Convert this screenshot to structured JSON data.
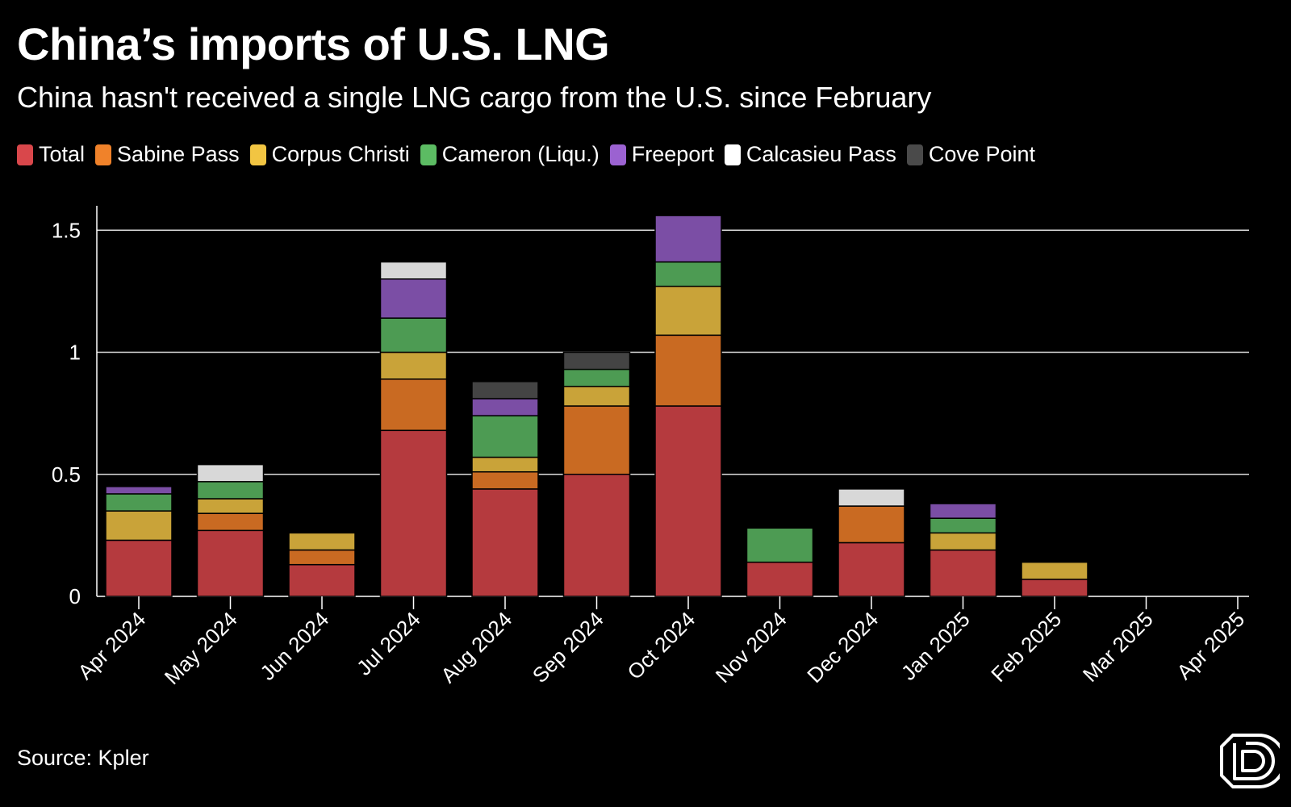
{
  "title": "China’s imports of U.S. LNG",
  "subtitle": "China hasn't received a single LNG cargo from the U.S. since February",
  "source": "Source: Kpler",
  "logo": "D",
  "legend": [
    {
      "label": "Total",
      "color": "#d9474b"
    },
    {
      "label": "Sabine Pass",
      "color": "#f0822a"
    },
    {
      "label": "Corpus Christi",
      "color": "#f2c542"
    },
    {
      "label": "Cameron (Liqu.)",
      "color": "#5cbc63"
    },
    {
      "label": "Freeport",
      "color": "#9b62d1"
    },
    {
      "label": "Calcasieu Pass",
      "color": "#ffffff"
    },
    {
      "label": "Cove Point",
      "color": "#4a4a4a"
    }
  ],
  "chart_data": {
    "type": "bar",
    "stacked": true,
    "categories": [
      "Apr 2024",
      "May 2024",
      "Jun 2024",
      "Jul 2024",
      "Aug 2024",
      "Sep 2024",
      "Oct 2024",
      "Nov 2024",
      "Dec 2024",
      "Jan 2025",
      "Feb 2025",
      "Mar 2025",
      "Apr 2025"
    ],
    "series": [
      {
        "name": "Total",
        "color": "#b53a3e",
        "values": [
          0.23,
          0.27,
          0.13,
          0.68,
          0.44,
          0.5,
          0.78,
          0.14,
          0.22,
          0.19,
          0.07,
          0,
          0
        ]
      },
      {
        "name": "Sabine Pass",
        "color": "#c96a22",
        "values": [
          0,
          0.07,
          0.06,
          0.21,
          0.07,
          0.28,
          0.29,
          0,
          0.15,
          0,
          0,
          0,
          0
        ]
      },
      {
        "name": "Corpus Christi",
        "color": "#c9a339",
        "values": [
          0.12,
          0.06,
          0.07,
          0.11,
          0.06,
          0.08,
          0.2,
          0,
          0,
          0.07,
          0.07,
          0,
          0
        ]
      },
      {
        "name": "Cameron (Liqu.)",
        "color": "#4d9b53",
        "values": [
          0.07,
          0.07,
          0,
          0.14,
          0.17,
          0.07,
          0.1,
          0.14,
          0,
          0.06,
          0,
          0,
          0
        ]
      },
      {
        "name": "Freeport",
        "color": "#7b4ea5",
        "values": [
          0.03,
          0,
          0,
          0.16,
          0.07,
          0,
          0.19,
          0,
          0,
          0.06,
          0,
          0,
          0
        ]
      },
      {
        "name": "Calcasieu Pass",
        "color": "#d8d8d8",
        "values": [
          0,
          0.07,
          0,
          0.07,
          0,
          0,
          0,
          0,
          0.07,
          0,
          0,
          0,
          0
        ]
      },
      {
        "name": "Cove Point",
        "color": "#444444",
        "values": [
          0,
          0,
          0,
          0,
          0.07,
          0.07,
          0,
          0,
          0,
          0,
          0,
          0,
          0
        ]
      }
    ],
    "ylim": [
      0,
      1.6
    ],
    "yticks": [
      0,
      0.5,
      1,
      1.5
    ],
    "ytick_labels": [
      "0",
      "0.5",
      "1",
      "1.5"
    ],
    "grid": true,
    "legend_position": "top-left"
  }
}
